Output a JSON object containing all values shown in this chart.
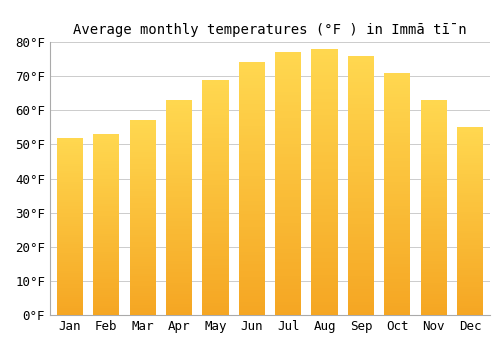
{
  "title": "Average monthly temperatures (°F ) in Immā tī̄n",
  "months": [
    "Jan",
    "Feb",
    "Mar",
    "Apr",
    "May",
    "Jun",
    "Jul",
    "Aug",
    "Sep",
    "Oct",
    "Nov",
    "Dec"
  ],
  "temperatures": [
    52,
    53,
    57,
    63,
    69,
    74,
    77,
    78,
    76,
    71,
    63,
    55
  ],
  "ylim": [
    0,
    80
  ],
  "yticks": [
    0,
    10,
    20,
    30,
    40,
    50,
    60,
    70,
    80
  ],
  "ytick_labels": [
    "0°F",
    "10°F",
    "20°F",
    "30°F",
    "40°F",
    "50°F",
    "60°F",
    "70°F",
    "80°F"
  ],
  "background_color": "#ffffff",
  "plot_bg_color": "#ffffff",
  "grid_color": "#cccccc",
  "bar_color_bottom": "#F5A623",
  "bar_color_top": "#FFD966",
  "bar_color_mid": "#FFCC44",
  "title_fontsize": 10,
  "tick_fontsize": 9,
  "bar_width": 0.72
}
